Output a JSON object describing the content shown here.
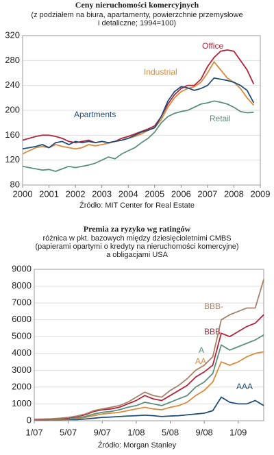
{
  "chart_data": [
    {
      "type": "line",
      "title": "Ceny nieruchomości komercyjnych",
      "subtitle": [
        "(z podziałem na biura, apartamenty, powierzchnie przemysłowe",
        "i detaliczne; 1994=100)"
      ],
      "source": "Źródło: MIT Center for Real Estate",
      "x": [
        2000,
        2000.25,
        2000.5,
        2000.75,
        2001,
        2001.25,
        2001.5,
        2001.75,
        2002,
        2002.25,
        2002.5,
        2002.75,
        2003,
        2003.25,
        2003.5,
        2003.75,
        2004,
        2004.25,
        2004.5,
        2004.75,
        2005,
        2005.25,
        2005.5,
        2005.75,
        2006,
        2006.25,
        2006.5,
        2006.75,
        2007,
        2007.25,
        2007.5,
        2007.75,
        2008,
        2008.25,
        2008.5,
        2008.75
      ],
      "xlim": [
        2000,
        2009
      ],
      "xticks": [
        2000,
        2001,
        2002,
        2003,
        2004,
        2005,
        2006,
        2007,
        2008,
        2009
      ],
      "ylim": [
        80,
        320
      ],
      "yticks": [
        80,
        120,
        160,
        200,
        240,
        280,
        320
      ],
      "grid": true,
      "series": [
        {
          "name": "Office",
          "color": "#b0243a",
          "values": [
            152,
            155,
            158,
            160,
            160,
            158,
            155,
            150,
            148,
            150,
            152,
            148,
            150,
            148,
            150,
            155,
            158,
            162,
            166,
            170,
            175,
            190,
            210,
            225,
            235,
            240,
            240,
            250,
            270,
            285,
            295,
            297,
            295,
            280,
            265,
            242
          ]
        },
        {
          "name": "Industrial",
          "color": "#d98a3d",
          "values": [
            130,
            135,
            140,
            142,
            140,
            145,
            142,
            140,
            138,
            140,
            145,
            143,
            145,
            147,
            150,
            152,
            155,
            158,
            162,
            168,
            172,
            185,
            205,
            220,
            230,
            235,
            238,
            245,
            260,
            278,
            265,
            252,
            245,
            235,
            220,
            208
          ]
        },
        {
          "name": "Apartments",
          "color": "#1f4e79",
          "values": [
            138,
            140,
            142,
            145,
            140,
            148,
            150,
            145,
            150,
            148,
            150,
            148,
            150,
            148,
            150,
            152,
            155,
            160,
            165,
            168,
            172,
            190,
            215,
            230,
            238,
            236,
            232,
            235,
            240,
            252,
            250,
            248,
            245,
            240,
            232,
            212
          ]
        },
        {
          "name": "Retail",
          "color": "#5a8f7b",
          "values": [
            110,
            108,
            106,
            104,
            105,
            102,
            106,
            110,
            108,
            110,
            112,
            115,
            120,
            125,
            122,
            130,
            135,
            140,
            148,
            155,
            165,
            180,
            190,
            195,
            198,
            200,
            205,
            210,
            212,
            215,
            213,
            210,
            205,
            198,
            196,
            197
          ]
        }
      ]
    },
    {
      "type": "line",
      "title": "Premia za ryzyko wg ratingów",
      "subtitle": [
        "różnica w pkt. bazowych między dziesięcioletnimi CMBS",
        "(papierami opartymi o kredyty na nieruchomości komercyjne)",
        "a obligacjami USA"
      ],
      "source": "Źródło: Morgan Stanley",
      "x": [
        0,
        1,
        2,
        3,
        4,
        5,
        6,
        7,
        8,
        9,
        10,
        11,
        12,
        13,
        14,
        15,
        16,
        17,
        18,
        19,
        20,
        21,
        22,
        23,
        24,
        25,
        26,
        27
      ],
      "xlim": [
        0,
        27
      ],
      "xticks": [
        {
          "value": 0,
          "label": "1/07"
        },
        {
          "value": 4,
          "label": "5/07"
        },
        {
          "value": 8,
          "label": "9/07"
        },
        {
          "value": 12,
          "label": "1/08"
        },
        {
          "value": 16,
          "label": "5/08"
        },
        {
          "value": 20,
          "label": "9/08"
        },
        {
          "value": 24,
          "label": "1/09"
        }
      ],
      "ylim": [
        0,
        9000
      ],
      "yticks": [
        0,
        1000,
        2000,
        3000,
        4000,
        5000,
        6000,
        7000,
        8000,
        9000
      ],
      "grid": true,
      "series": [
        {
          "name": "AAA",
          "color": "#1f4e79",
          "values": [
            50,
            50,
            55,
            60,
            65,
            70,
            100,
            150,
            200,
            220,
            250,
            280,
            300,
            330,
            300,
            250,
            280,
            300,
            350,
            400,
            450,
            600,
            1400,
            1100,
            1000,
            1000,
            1200,
            900
          ]
        },
        {
          "name": "AA",
          "color": "#d98a3d",
          "values": [
            60,
            60,
            70,
            80,
            100,
            130,
            200,
            300,
            400,
            450,
            500,
            600,
            700,
            800,
            700,
            650,
            800,
            900,
            1100,
            1500,
            1800,
            2300,
            3500,
            3300,
            3500,
            3800,
            4000,
            4100
          ]
        },
        {
          "name": "A",
          "color": "#5a8f7b",
          "values": [
            70,
            70,
            80,
            100,
            130,
            180,
            250,
            400,
            500,
            550,
            650,
            800,
            900,
            1100,
            1000,
            900,
            1100,
            1300,
            1500,
            2000,
            2300,
            2800,
            4500,
            4200,
            4400,
            4600,
            4800,
            5100
          ]
        },
        {
          "name": "BBB",
          "color": "#b0243a",
          "values": [
            80,
            80,
            100,
            130,
            170,
            250,
            350,
            550,
            650,
            700,
            800,
            1000,
            1200,
            1500,
            1300,
            1200,
            1500,
            1800,
            2100,
            2600,
            2900,
            3300,
            5200,
            5000,
            5300,
            5600,
            5800,
            6300
          ]
        },
        {
          "name": "BBB-",
          "color": "#a8806a",
          "values": [
            90,
            100,
            120,
            150,
            200,
            280,
            400,
            600,
            700,
            800,
            900,
            1100,
            1400,
            1700,
            1500,
            1400,
            1800,
            2100,
            2500,
            3000,
            3300,
            3800,
            6000,
            6300,
            6500,
            6700,
            6700,
            8400
          ]
        }
      ]
    }
  ]
}
